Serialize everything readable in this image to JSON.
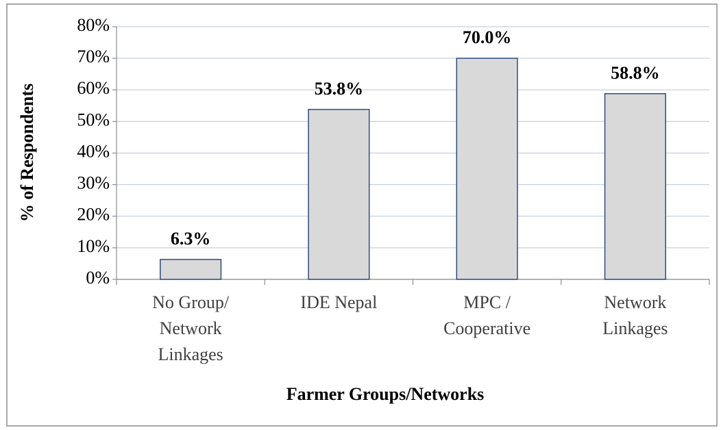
{
  "chart_data": {
    "type": "bar",
    "x_label": "Farmer Groups/Networks",
    "y_label": "% of Respondents",
    "categories": [
      [
        "No Group/",
        "Network",
        "Linkages"
      ],
      [
        "IDE Nepal"
      ],
      [
        "MPC /",
        "Cooperative"
      ],
      [
        "Network",
        "Linkages"
      ]
    ],
    "values": [
      6.3,
      53.8,
      70.0,
      58.8
    ],
    "value_labels": [
      "6.3%",
      "53.8%",
      "70.0%",
      "58.8%"
    ],
    "color": "#d9d9d9",
    "edge_color": "#2f4b7c",
    "ylim": [
      0,
      80
    ],
    "yticks": [
      {
        "value": 0,
        "label": "0%"
      },
      {
        "value": 10,
        "label": "10%"
      },
      {
        "value": 20,
        "label": "20%"
      },
      {
        "value": 30,
        "label": "30%"
      },
      {
        "value": 40,
        "label": "40%"
      },
      {
        "value": 50,
        "label": "50%"
      },
      {
        "value": 60,
        "label": "60%"
      },
      {
        "value": 70,
        "label": "70%"
      },
      {
        "value": 80,
        "label": "80%"
      }
    ],
    "grid": true
  }
}
